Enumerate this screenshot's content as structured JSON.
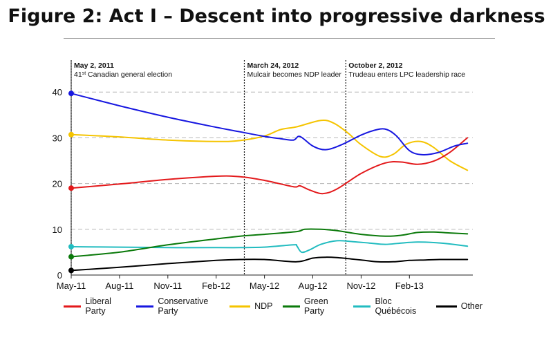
{
  "chart_data": {
    "type": "line",
    "title": "Figure 2: Act I – Descent into progressive darkness",
    "xlabel": "",
    "ylabel": "",
    "ylim": [
      0,
      40
    ],
    "yticks": [
      0,
      10,
      20,
      30,
      40
    ],
    "grid": "horizontal dashed",
    "x_tick_labels": [
      "May-11",
      "Aug-11",
      "Nov-11",
      "Feb-12",
      "May-12",
      "Aug-12",
      "Nov-12",
      "Feb-13"
    ],
    "x_tick_months": [
      0,
      3,
      6,
      9,
      12,
      15,
      18,
      21
    ],
    "legend_position": "bottom",
    "events": [
      {
        "month": 0,
        "date": "May 2, 2011",
        "label_main": "41",
        "label_sup": "st",
        "label_rest": " Canadian general election"
      },
      {
        "month": 10.75,
        "date": "March 24, 2012",
        "label_main": "Mulcair becomes NDP leader",
        "label_sup": "",
        "label_rest": ""
      },
      {
        "month": 17.05,
        "date": "October 2, 2012",
        "label_main": "Trudeau enters LPC leadership race",
        "label_sup": "",
        "label_rest": ""
      }
    ],
    "series": [
      {
        "name": "Liberal Party",
        "color": "#e3191b",
        "x": [
          0,
          3,
          6,
          9,
          10.5,
          12,
          13.8,
          14.2,
          14.8,
          15.6,
          16.5,
          18,
          19.5,
          20.5,
          21.5,
          22.5,
          23.5,
          24.6
        ],
        "y": [
          19,
          19.9,
          20.9,
          21.6,
          21.5,
          20.7,
          19.3,
          19.5,
          18.6,
          17.8,
          18.8,
          22.2,
          24.5,
          24.7,
          24.2,
          24.9,
          26.8,
          30
        ]
      },
      {
        "name": "Conservative Party",
        "color": "#1717e0",
        "x": [
          0,
          3,
          6,
          9,
          10.5,
          12,
          13,
          13.8,
          14.2,
          15,
          15.8,
          16.8,
          18,
          19,
          19.6,
          20.2,
          21,
          21.8,
          22.8,
          23.8,
          24.6
        ],
        "y": [
          39.7,
          37,
          34.5,
          32.3,
          31.3,
          30.3,
          29.8,
          29.5,
          30.3,
          28.2,
          27.4,
          28.5,
          30.6,
          31.8,
          31.8,
          30.4,
          27.2,
          26.3,
          26.8,
          28.2,
          28.8
        ]
      },
      {
        "name": "NDP",
        "color": "#f5c400",
        "x": [
          0,
          3,
          6,
          9,
          10.5,
          12,
          13,
          14,
          15.5,
          16.3,
          17.2,
          18,
          19.2,
          20,
          20.8,
          21.7,
          22.5,
          23.5,
          24.6
        ],
        "y": [
          30.7,
          30.2,
          29.5,
          29.2,
          29.4,
          30.4,
          31.8,
          32.4,
          33.8,
          33.2,
          31,
          28.5,
          25.9,
          26.4,
          28.6,
          29.2,
          27.9,
          25,
          22.9
        ]
      },
      {
        "name": "Green Party",
        "color": "#0b7a0b",
        "x": [
          0,
          3,
          6,
          9,
          10.5,
          12,
          14,
          14.5,
          15.5,
          16.5,
          18,
          19.5,
          20.5,
          21.5,
          22.5,
          23.5,
          24.6
        ],
        "y": [
          4,
          5,
          6.6,
          7.9,
          8.5,
          8.9,
          9.5,
          10,
          10,
          9.7,
          8.9,
          8.5,
          8.7,
          9.3,
          9.4,
          9.2,
          9
        ]
      },
      {
        "name": "Bloc Québécois",
        "color": "#22bcc0",
        "x": [
          0,
          3,
          6,
          9,
          10.5,
          12,
          13.8,
          14,
          14.3,
          14.8,
          15.5,
          16.5,
          17.5,
          18.5,
          19.5,
          20.5,
          21.5,
          22.5,
          23.5,
          24.6
        ],
        "y": [
          6.2,
          6.1,
          6,
          6,
          6,
          6.1,
          6.6,
          6.4,
          5,
          5.5,
          6.7,
          7.5,
          7.3,
          7,
          6.7,
          7,
          7.2,
          7.1,
          6.8,
          6.3
        ]
      },
      {
        "name": "Other",
        "color": "#000000",
        "x": [
          0,
          3,
          6,
          9,
          10.5,
          12,
          14,
          15,
          15.8,
          16.5,
          18,
          19,
          20,
          21,
          22,
          23,
          24.6
        ],
        "y": [
          1,
          1.7,
          2.5,
          3.2,
          3.4,
          3.4,
          2.9,
          3.7,
          3.9,
          3.8,
          3.3,
          2.9,
          2.9,
          3.2,
          3.3,
          3.4,
          3.4
        ]
      }
    ]
  }
}
